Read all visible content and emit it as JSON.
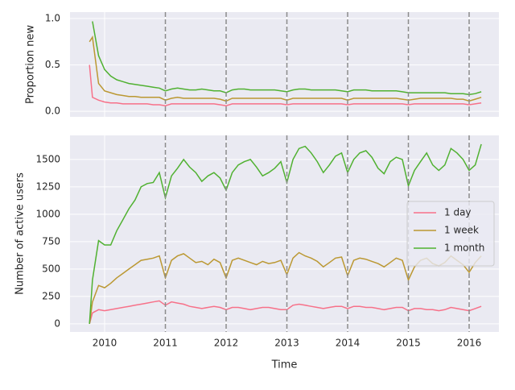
{
  "chart_data": [
    {
      "type": "line",
      "ylabel": "Proportion new",
      "x": [
        2009.75,
        2009.8,
        2009.9,
        2010.0,
        2010.1,
        2010.2,
        2010.3,
        2010.4,
        2010.5,
        2010.6,
        2010.7,
        2010.8,
        2010.9,
        2011.0,
        2011.1,
        2011.2,
        2011.3,
        2011.4,
        2011.5,
        2011.6,
        2011.7,
        2011.8,
        2011.9,
        2012.0,
        2012.1,
        2012.2,
        2012.3,
        2012.4,
        2012.5,
        2012.6,
        2012.7,
        2012.8,
        2012.9,
        2013.0,
        2013.1,
        2013.2,
        2013.3,
        2013.4,
        2013.5,
        2013.6,
        2013.7,
        2013.8,
        2013.9,
        2014.0,
        2014.1,
        2014.2,
        2014.3,
        2014.4,
        2014.5,
        2014.6,
        2014.7,
        2014.8,
        2014.9,
        2015.0,
        2015.1,
        2015.2,
        2015.3,
        2015.4,
        2015.5,
        2015.6,
        2015.7,
        2015.8,
        2015.9,
        2016.0,
        2016.1,
        2016.2
      ],
      "series": [
        {
          "name": "1 day",
          "color": "#f77189",
          "values": [
            0.5,
            0.15,
            0.12,
            0.1,
            0.09,
            0.09,
            0.08,
            0.08,
            0.08,
            0.08,
            0.08,
            0.07,
            0.07,
            0.06,
            0.08,
            0.08,
            0.08,
            0.08,
            0.08,
            0.08,
            0.08,
            0.08,
            0.07,
            0.06,
            0.08,
            0.08,
            0.08,
            0.08,
            0.08,
            0.08,
            0.08,
            0.08,
            0.08,
            0.07,
            0.08,
            0.08,
            0.08,
            0.08,
            0.08,
            0.08,
            0.08,
            0.08,
            0.08,
            0.07,
            0.08,
            0.08,
            0.08,
            0.08,
            0.08,
            0.08,
            0.08,
            0.08,
            0.08,
            0.07,
            0.08,
            0.08,
            0.08,
            0.08,
            0.08,
            0.08,
            0.08,
            0.08,
            0.08,
            0.07,
            0.08,
            0.09
          ]
        },
        {
          "name": "1 week",
          "color": "#bb9832",
          "values": [
            0.75,
            0.8,
            0.3,
            0.22,
            0.2,
            0.18,
            0.17,
            0.16,
            0.16,
            0.15,
            0.15,
            0.15,
            0.15,
            0.12,
            0.14,
            0.15,
            0.14,
            0.14,
            0.14,
            0.14,
            0.14,
            0.14,
            0.13,
            0.11,
            0.14,
            0.14,
            0.14,
            0.14,
            0.14,
            0.14,
            0.14,
            0.14,
            0.14,
            0.12,
            0.14,
            0.14,
            0.14,
            0.14,
            0.14,
            0.14,
            0.14,
            0.14,
            0.14,
            0.12,
            0.14,
            0.14,
            0.14,
            0.14,
            0.14,
            0.14,
            0.14,
            0.14,
            0.13,
            0.12,
            0.13,
            0.14,
            0.14,
            0.14,
            0.14,
            0.14,
            0.14,
            0.13,
            0.13,
            0.11,
            0.13,
            0.15
          ]
        },
        {
          "name": "1 month",
          "color": "#50b131",
          "values": [
            null,
            0.97,
            0.6,
            0.45,
            0.38,
            0.34,
            0.32,
            0.3,
            0.29,
            0.28,
            0.27,
            0.26,
            0.25,
            0.22,
            0.24,
            0.25,
            0.24,
            0.23,
            0.23,
            0.24,
            0.23,
            0.22,
            0.22,
            0.2,
            0.23,
            0.24,
            0.24,
            0.23,
            0.23,
            0.23,
            0.23,
            0.23,
            0.22,
            0.21,
            0.23,
            0.24,
            0.24,
            0.23,
            0.23,
            0.23,
            0.23,
            0.23,
            0.22,
            0.21,
            0.23,
            0.23,
            0.23,
            0.22,
            0.22,
            0.22,
            0.22,
            0.22,
            0.21,
            0.2,
            0.2,
            0.2,
            0.2,
            0.2,
            0.2,
            0.2,
            0.19,
            0.19,
            0.19,
            0.18,
            0.19,
            0.21
          ]
        }
      ],
      "xlim": [
        2009.43,
        2016.49
      ],
      "xticks": [
        2010,
        2011,
        2012,
        2013,
        2014,
        2015,
        2016
      ],
      "ylim": [
        -0.06,
        1.07
      ],
      "yticks": [
        {
          "value": 0,
          "label": "0.0"
        },
        {
          "value": 0.5,
          "label": "0.5"
        },
        {
          "value": 1,
          "label": "1.0"
        }
      ],
      "vlines": [
        2011,
        2012,
        2013,
        2014,
        2015,
        2016
      ],
      "grid": true
    },
    {
      "type": "line",
      "xlabel": "Time",
      "ylabel": "Number of active users",
      "legend": "right",
      "x": [
        2009.75,
        2009.8,
        2009.9,
        2010.0,
        2010.1,
        2010.2,
        2010.3,
        2010.4,
        2010.5,
        2010.6,
        2010.7,
        2010.8,
        2010.9,
        2011.0,
        2011.1,
        2011.2,
        2011.3,
        2011.4,
        2011.5,
        2011.6,
        2011.7,
        2011.8,
        2011.9,
        2012.0,
        2012.1,
        2012.2,
        2012.3,
        2012.4,
        2012.5,
        2012.6,
        2012.7,
        2012.8,
        2012.9,
        2013.0,
        2013.1,
        2013.2,
        2013.3,
        2013.4,
        2013.5,
        2013.6,
        2013.7,
        2013.8,
        2013.9,
        2014.0,
        2014.1,
        2014.2,
        2014.3,
        2014.4,
        2014.5,
        2014.6,
        2014.7,
        2014.8,
        2014.9,
        2015.0,
        2015.1,
        2015.2,
        2015.3,
        2015.4,
        2015.5,
        2015.6,
        2015.7,
        2015.8,
        2015.9,
        2016.0,
        2016.1,
        2016.2
      ],
      "series": [
        {
          "name": "1 day",
          "color": "#f77189",
          "values": [
            0,
            100,
            130,
            120,
            130,
            140,
            150,
            160,
            170,
            180,
            190,
            200,
            210,
            170,
            200,
            190,
            180,
            160,
            150,
            140,
            150,
            160,
            150,
            130,
            150,
            150,
            140,
            130,
            140,
            150,
            150,
            140,
            130,
            130,
            170,
            180,
            170,
            160,
            150,
            140,
            150,
            160,
            160,
            140,
            160,
            160,
            150,
            150,
            140,
            130,
            140,
            150,
            150,
            120,
            140,
            140,
            130,
            130,
            120,
            130,
            150,
            140,
            130,
            120,
            140,
            160
          ]
        },
        {
          "name": "1 week",
          "color": "#bb9832",
          "values": [
            0,
            200,
            350,
            330,
            370,
            420,
            460,
            500,
            540,
            580,
            590,
            600,
            620,
            420,
            580,
            620,
            640,
            600,
            560,
            570,
            540,
            590,
            560,
            420,
            580,
            600,
            580,
            560,
            540,
            570,
            550,
            560,
            580,
            450,
            600,
            650,
            620,
            600,
            570,
            520,
            560,
            600,
            610,
            440,
            580,
            600,
            590,
            570,
            550,
            520,
            560,
            600,
            580,
            400,
            520,
            580,
            600,
            550,
            530,
            560,
            620,
            580,
            540,
            470,
            560,
            620
          ]
        },
        {
          "name": "1 month",
          "color": "#50b131",
          "values": [
            0,
            400,
            760,
            720,
            720,
            850,
            950,
            1050,
            1130,
            1250,
            1280,
            1290,
            1380,
            1150,
            1350,
            1420,
            1500,
            1430,
            1380,
            1300,
            1350,
            1380,
            1330,
            1220,
            1380,
            1450,
            1480,
            1500,
            1430,
            1350,
            1380,
            1420,
            1480,
            1290,
            1500,
            1600,
            1620,
            1560,
            1480,
            1380,
            1450,
            1530,
            1560,
            1380,
            1500,
            1560,
            1580,
            1520,
            1420,
            1370,
            1480,
            1520,
            1500,
            1260,
            1400,
            1480,
            1560,
            1450,
            1400,
            1450,
            1600,
            1560,
            1500,
            1400,
            1450,
            1640
          ]
        }
      ],
      "xlim": [
        2009.43,
        2016.49
      ],
      "xticks": [
        2010,
        2011,
        2012,
        2013,
        2014,
        2015,
        2016
      ],
      "ylim": [
        -74,
        1720
      ],
      "yticks": [
        0,
        250,
        500,
        750,
        1000,
        1250,
        1500
      ],
      "vlines": [
        2011,
        2012,
        2013,
        2014,
        2015,
        2016
      ],
      "grid": true
    }
  ]
}
